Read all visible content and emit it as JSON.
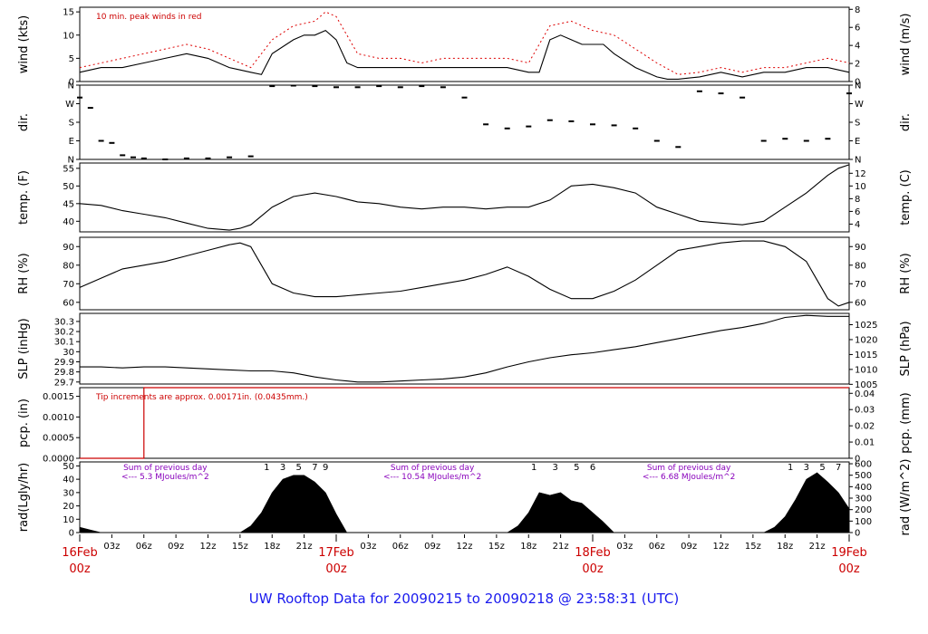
{
  "colors": {
    "trace": "#000000",
    "peak": "#dd0000",
    "precip": "#cc0000",
    "note": "#cc0000",
    "solar_note": "#8800bb",
    "title": "#1a1aee"
  },
  "title": "UW Rooftop Data for 20090215  to  20090218 @ 23:58:31  (UTC)",
  "x_axis": {
    "hour_ticks": [
      "03z",
      "06z",
      "09z",
      "12z",
      "15z",
      "18z",
      "21z"
    ],
    "day_labels": [
      {
        "day": "16Feb",
        "hour": "00z",
        "x": 0
      },
      {
        "day": "17Feb",
        "hour": "00z",
        "x": 24
      },
      {
        "day": "18Feb",
        "hour": "00z",
        "x": 48
      },
      {
        "day": "19Feb",
        "hour": "00z",
        "x": 72
      }
    ]
  },
  "chart_data": [
    {
      "id": "wind",
      "type": "line",
      "ylabel": "wind (kts)",
      "ylabel_right": "wind (m/s)",
      "ylim": [
        0,
        16
      ],
      "yticks": [
        0,
        5,
        10,
        15
      ],
      "right_ylim": [
        0,
        8.23
      ],
      "right_yticks": [
        0,
        2,
        4,
        6,
        8
      ],
      "annotation": "10 min. peak winds in red",
      "series": [
        {
          "type": "line",
          "x": [
            0,
            2,
            4,
            6,
            8,
            10,
            12,
            14,
            15,
            16,
            17,
            18,
            20,
            21,
            22,
            23,
            24,
            25,
            26,
            28,
            30,
            32,
            34,
            36,
            38,
            40,
            41,
            42,
            43,
            44,
            45,
            46,
            47,
            48,
            49,
            50,
            52,
            54,
            55,
            56,
            58,
            60,
            62,
            64,
            66,
            68,
            70,
            72
          ],
          "y": [
            2,
            3,
            3,
            4,
            5,
            6,
            5,
            3,
            2.5,
            2,
            1.5,
            6,
            9,
            10,
            10,
            11,
            9,
            4,
            3,
            3,
            3,
            3,
            3,
            3,
            3,
            3,
            2.5,
            2,
            2,
            9,
            10,
            9,
            8,
            8,
            8,
            6,
            3,
            1,
            0.5,
            0.5,
            1,
            2,
            1,
            2,
            2,
            3,
            3,
            2
          ]
        },
        {
          "type": "line",
          "x": [
            0,
            2,
            4,
            6,
            8,
            10,
            12,
            14,
            16,
            18,
            20,
            22,
            23,
            24,
            26,
            28,
            30,
            32,
            34,
            36,
            38,
            40,
            42,
            44,
            46,
            48,
            50,
            52,
            54,
            56,
            58,
            60,
            62,
            64,
            66,
            68,
            70,
            72
          ],
          "y": [
            3,
            4,
            5,
            6,
            7,
            8,
            7,
            5,
            3,
            9,
            12,
            13,
            15,
            14,
            6,
            5,
            5,
            4,
            5,
            5,
            5,
            5,
            4,
            12,
            13,
            11,
            10,
            7,
            4,
            1.5,
            2,
            3,
            2,
            3,
            3,
            4,
            5,
            4
          ]
        }
      ]
    },
    {
      "id": "dir",
      "type": "scatter",
      "ylabel": "dir.",
      "ylabel_right": "dir.",
      "ytick_labels": [
        "N",
        "E",
        "S",
        "W",
        "N"
      ],
      "ylim": [
        0,
        360
      ],
      "series": [
        {
          "type": "scatter",
          "x": [
            0,
            1,
            2,
            3,
            4,
            5,
            6,
            8,
            10,
            12,
            14,
            16,
            18,
            20,
            22,
            24,
            26,
            28,
            30,
            32,
            34,
            36,
            38,
            40,
            42,
            44,
            46,
            48,
            50,
            52,
            54,
            56,
            58,
            60,
            62,
            64,
            66,
            68,
            70,
            72
          ],
          "y": [
            300,
            250,
            90,
            80,
            20,
            10,
            5,
            0,
            5,
            5,
            10,
            15,
            355,
            358,
            355,
            350,
            350,
            355,
            350,
            355,
            350,
            300,
            170,
            150,
            160,
            190,
            185,
            170,
            165,
            150,
            90,
            60,
            330,
            320,
            300,
            90,
            100,
            90,
            100,
            320
          ]
        }
      ]
    },
    {
      "id": "temp",
      "type": "line",
      "ylabel": "temp. (F)",
      "ylabel_right": "temp. (C)",
      "ylim": [
        37,
        56.5
      ],
      "yticks": [
        40,
        45,
        50,
        55
      ],
      "right_ylim": [
        2.78,
        13.61
      ],
      "right_yticks": [
        4,
        6,
        8,
        10,
        12
      ],
      "series": [
        {
          "type": "line",
          "x": [
            0,
            2,
            4,
            6,
            8,
            10,
            12,
            14,
            15,
            16,
            18,
            20,
            22,
            24,
            26,
            28,
            30,
            32,
            34,
            36,
            38,
            40,
            42,
            44,
            46,
            48,
            50,
            52,
            54,
            56,
            58,
            60,
            62,
            64,
            66,
            68,
            70,
            71,
            72
          ],
          "y": [
            45,
            44.5,
            43,
            42,
            41,
            39.5,
            38,
            37.5,
            38,
            39,
            44,
            47,
            48,
            47,
            45.5,
            45,
            44,
            43.5,
            44,
            44,
            43.5,
            44,
            44,
            46,
            50,
            50.5,
            49.5,
            48,
            44,
            42,
            40,
            39.5,
            39,
            40,
            44,
            48,
            53,
            55,
            56
          ]
        }
      ]
    },
    {
      "id": "rh",
      "type": "line",
      "ylabel": "RH (%)",
      "ylabel_right": "RH (%)",
      "ylim": [
        56,
        95
      ],
      "yticks": [
        60,
        70,
        80,
        90
      ],
      "series": [
        {
          "type": "line",
          "x": [
            0,
            2,
            4,
            6,
            8,
            10,
            12,
            14,
            15,
            16,
            17,
            18,
            20,
            22,
            24,
            26,
            28,
            30,
            32,
            34,
            36,
            38,
            40,
            42,
            44,
            46,
            48,
            50,
            52,
            54,
            56,
            58,
            60,
            62,
            64,
            66,
            68,
            69,
            70,
            71,
            72
          ],
          "y": [
            68,
            73,
            78,
            80,
            82,
            85,
            88,
            91,
            92,
            90,
            80,
            70,
            65,
            63,
            63,
            64,
            65,
            66,
            68,
            70,
            72,
            75,
            79,
            74,
            67,
            62,
            62,
            66,
            72,
            80,
            88,
            90,
            92,
            93,
            93,
            90,
            82,
            72,
            62,
            58,
            60
          ]
        }
      ]
    },
    {
      "id": "slp",
      "type": "line",
      "ylabel": "SLP (inHg)",
      "ylabel_right": "SLP (hPa)",
      "ylim": [
        29.68,
        30.38
      ],
      "yticks": [
        29.7,
        29.8,
        29.9,
        30.0,
        30.1,
        30.2,
        30.3
      ],
      "right_ylim": [
        1005.1,
        1028.8
      ],
      "right_yticks": [
        1005,
        1010,
        1015,
        1020,
        1025
      ],
      "series": [
        {
          "type": "line",
          "x": [
            0,
            2,
            4,
            6,
            8,
            10,
            12,
            14,
            16,
            18,
            20,
            22,
            24,
            26,
            28,
            30,
            32,
            34,
            36,
            38,
            40,
            42,
            44,
            46,
            48,
            50,
            52,
            54,
            56,
            58,
            60,
            62,
            64,
            66,
            68,
            70,
            72
          ],
          "y": [
            29.85,
            29.85,
            29.84,
            29.85,
            29.85,
            29.84,
            29.83,
            29.82,
            29.81,
            29.81,
            29.79,
            29.75,
            29.72,
            29.7,
            29.7,
            29.71,
            29.72,
            29.73,
            29.75,
            29.79,
            29.85,
            29.9,
            29.94,
            29.97,
            29.99,
            30.02,
            30.05,
            30.09,
            30.13,
            30.17,
            30.21,
            30.24,
            30.28,
            30.34,
            30.36,
            30.35,
            30.35
          ]
        }
      ]
    },
    {
      "id": "pcp",
      "type": "line",
      "ylabel": "pcp. (in)",
      "ylabel_right": "pcp. (mm)",
      "ylim": [
        0,
        0.00171
      ],
      "yticks": [
        0.0,
        0.0005,
        0.001,
        0.0015
      ],
      "ytick_labels": [
        "0.0000",
        "0.0005",
        "0.0010",
        "0.0015"
      ],
      "right_ylim": [
        0,
        0.0435
      ],
      "right_yticks": [
        0,
        0.01,
        0.02,
        0.03,
        0.04
      ],
      "annotation": "Tip increments are approx. 0.00171in. (0.0435mm.)",
      "series": [
        {
          "type": "line",
          "x": [
            0,
            6,
            6,
            72
          ],
          "y": [
            0,
            0,
            0.00171,
            0.00171
          ]
        }
      ]
    },
    {
      "id": "rad",
      "type": "area",
      "ylabel": "rad(Lgly/hr)",
      "ylabel_right": "rad (W/m^2)",
      "ylim": [
        0,
        53
      ],
      "yticks": [
        0,
        10,
        20,
        30,
        40,
        50
      ],
      "right_ylim": [
        0,
        616
      ],
      "right_yticks": [
        0,
        100,
        200,
        300,
        400,
        500,
        600
      ],
      "series": [
        {
          "type": "area",
          "x": [
            0,
            1,
            2,
            15,
            16,
            17,
            18,
            19,
            20,
            21,
            22,
            23,
            24,
            25,
            40,
            41,
            42,
            43,
            44,
            45,
            46,
            47,
            48,
            49,
            50,
            64,
            65,
            66,
            67,
            68,
            69,
            70,
            71,
            72
          ],
          "y": [
            4,
            2,
            0,
            0,
            5,
            15,
            30,
            40,
            43,
            43,
            38,
            30,
            14,
            0,
            0,
            5,
            15,
            30,
            28,
            30,
            24,
            22,
            15,
            8,
            0,
            0,
            4,
            12,
            25,
            40,
            45,
            38,
            30,
            18
          ]
        }
      ],
      "annotations": [
        {
          "text": "Sum of previous day",
          "x": 8
        },
        {
          "text": "<--- 5.3 MJoules/m^2",
          "x": 8
        },
        {
          "text": "Sum of previous day",
          "x": 33
        },
        {
          "text": "<--- 10.54 MJoules/m^2",
          "x": 33
        },
        {
          "text": "Sum of previous day",
          "x": 57
        },
        {
          "text": "<--- 6.68 MJoules/m^2",
          "x": 57
        }
      ],
      "sub_ticks": [
        {
          "label": "1",
          "x": 17.5
        },
        {
          "label": "3",
          "x": 19
        },
        {
          "label": "5",
          "x": 20.5
        },
        {
          "label": "7",
          "x": 22
        },
        {
          "label": "9",
          "x": 23
        },
        {
          "label": "1",
          "x": 42.5
        },
        {
          "label": "3",
          "x": 44.5
        },
        {
          "label": "5",
          "x": 46.5
        },
        {
          "label": "6",
          "x": 48
        },
        {
          "label": "1",
          "x": 66.5
        },
        {
          "label": "3",
          "x": 68
        },
        {
          "label": "5",
          "x": 69.5
        },
        {
          "label": "7",
          "x": 71
        }
      ]
    }
  ]
}
